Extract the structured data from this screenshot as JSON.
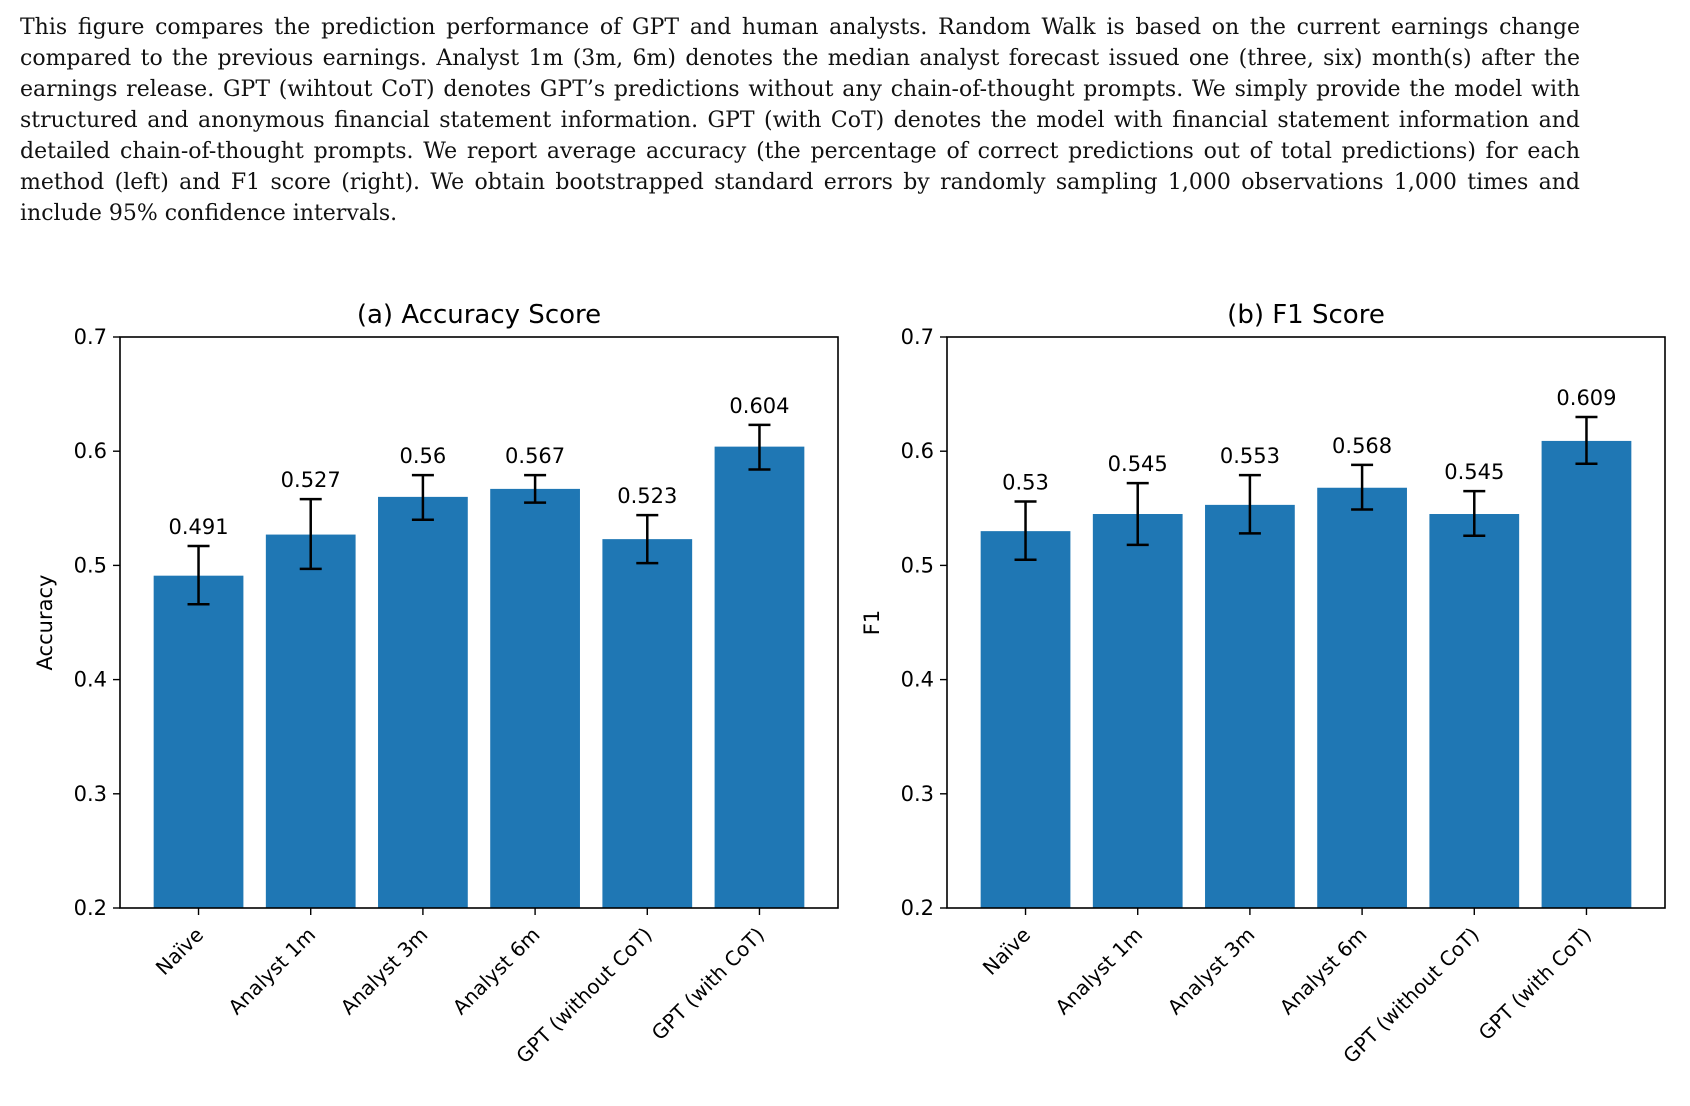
{
  "caption": "This figure compares the prediction performance of GPT and human analysts. Random Walk is based on the current earnings change compared to the previous earnings. Analyst 1m (3m, 6m) denotes the median analyst forecast issued one (three, six) month(s) after the earnings release. GPT (wihtout CoT) denotes GPT’s predictions without any chain-of-thought prompts. We simply provide the model with structured and anonymous financial statement information. GPT (with CoT) denotes the model with financial statement information and detailed chain-of-thought prompts. We report average accuracy (the percentage of correct predictions out of total predictions) for each method (left) and F1 score (right). We obtain bootstrapped standard errors by randomly sampling 1,000 observations 1,000 times and include 95% confidence intervals.",
  "colors": {
    "bar": "#1f77b4",
    "errorbar": "#000000"
  },
  "chart_data": [
    {
      "type": "bar",
      "title": "(a) Accuracy Score",
      "xlabel": "",
      "ylabel": "Accuracy",
      "ylim": [
        0.2,
        0.7
      ],
      "yticks": [
        "0.2",
        "0.3",
        "0.4",
        "0.5",
        "0.6",
        "0.7"
      ],
      "grid": false,
      "categories": [
        "Naïve",
        "Analyst 1m",
        "Analyst 3m",
        "Analyst 6m",
        "GPT (without CoT)",
        "GPT (with CoT)"
      ],
      "values": [
        0.491,
        0.527,
        0.56,
        0.567,
        0.523,
        0.604
      ],
      "labels": [
        "0.491",
        "0.527",
        "0.56",
        "0.567",
        "0.523",
        "0.604"
      ],
      "ci_low": [
        0.466,
        0.497,
        0.54,
        0.555,
        0.502,
        0.584
      ],
      "ci_high": [
        0.517,
        0.558,
        0.579,
        0.579,
        0.544,
        0.623
      ]
    },
    {
      "type": "bar",
      "title": "(b) F1 Score",
      "xlabel": "",
      "ylabel": "F1",
      "ylim": [
        0.2,
        0.7
      ],
      "yticks": [
        "0.2",
        "0.3",
        "0.4",
        "0.5",
        "0.6",
        "0.7"
      ],
      "grid": false,
      "categories": [
        "Naïve",
        "Analyst 1m",
        "Analyst 3m",
        "Analyst 6m",
        "GPT (without CoT)",
        "GPT (with CoT)"
      ],
      "values": [
        0.53,
        0.545,
        0.553,
        0.568,
        0.545,
        0.609
      ],
      "labels": [
        "0.53",
        "0.545",
        "0.553",
        "0.568",
        "0.545",
        "0.609"
      ],
      "ci_low": [
        0.505,
        0.518,
        0.528,
        0.549,
        0.526,
        0.589
      ],
      "ci_high": [
        0.556,
        0.572,
        0.579,
        0.588,
        0.565,
        0.63
      ]
    }
  ]
}
